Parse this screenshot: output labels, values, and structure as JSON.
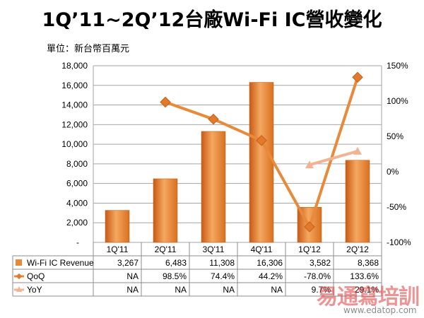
{
  "chart_data": {
    "type": "bar",
    "title": "1Q’11~2Q’12台廠Wi-Fi IC營收變化",
    "unit_label": "單位：新台幣百萬元",
    "categories": [
      "1Q'11",
      "2Q'11",
      "3Q'11",
      "4Q'11",
      "1Q'12",
      "2Q'12"
    ],
    "y_left": {
      "ylim": [
        0,
        18000
      ],
      "ticks": [
        "-",
        "2,000",
        "4,000",
        "6,000",
        "8,000",
        "10,000",
        "12,000",
        "14,000",
        "16,000",
        "18,000"
      ]
    },
    "y_right": {
      "ylim": [
        -100,
        150
      ],
      "ticks": [
        "-100%",
        "-50%",
        "0%",
        "50%",
        "100%",
        "150%"
      ]
    },
    "grid": true,
    "series": [
      {
        "name": "Wi-Fi IC Revenue",
        "kind": "bar",
        "axis": "left",
        "color": "#e9893a",
        "values": [
          3267,
          6483,
          11308,
          16306,
          3582,
          8368
        ],
        "labels": [
          "3,267",
          "6,483",
          "11,308",
          "16,306",
          "3,582",
          "8,368"
        ]
      },
      {
        "name": "QoQ",
        "kind": "line",
        "axis": "right",
        "color": "#e9893a",
        "marker": "diamond",
        "values": [
          null,
          98.5,
          74.4,
          44.2,
          -78.0,
          133.6
        ],
        "labels": [
          "NA",
          "98.5%",
          "74.4%",
          "44.2%",
          "-78.0%",
          "133.6%"
        ]
      },
      {
        "name": "YoY",
        "kind": "line",
        "axis": "right",
        "color": "#f0b494",
        "marker": "triangle",
        "values": [
          null,
          null,
          null,
          null,
          9.7,
          29.1
        ],
        "labels": [
          "NA",
          "NA",
          "NA",
          "NA",
          "9.7%",
          "29.1%"
        ]
      }
    ]
  },
  "watermark": {
    "text": "易通寫培訓",
    "url": "www.edatop.com"
  }
}
